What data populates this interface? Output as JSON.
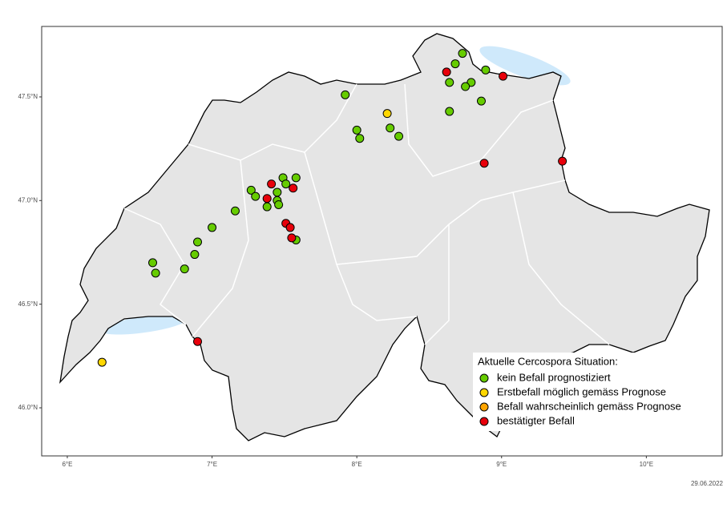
{
  "chart_data": {
    "type": "map",
    "legend_title": "Aktuelle Cercospora Situation:",
    "caption": "29.06.2022",
    "xlim": [
      5.823,
      10.524
    ],
    "ylim": [
      45.768,
      47.84
    ],
    "xticks": [
      {
        "value": 6,
        "label": "6°E"
      },
      {
        "value": 7,
        "label": "7°E"
      },
      {
        "value": 8,
        "label": "8°E"
      },
      {
        "value": 9,
        "label": "9°E"
      },
      {
        "value": 10,
        "label": "10°E"
      }
    ],
    "yticks": [
      {
        "value": 46.0,
        "label": "46.0°N"
      },
      {
        "value": 46.5,
        "label": "46.5°N"
      },
      {
        "value": 47.0,
        "label": "47.0°N"
      },
      {
        "value": 47.5,
        "label": "47.5°N"
      }
    ],
    "series": [
      {
        "name": "kein Befall prognostiziert",
        "color": "#66cc00",
        "x": [
          8.73,
          8.68,
          8.64,
          8.79,
          8.75,
          8.89,
          8.64,
          8.86,
          7.92,
          8.0,
          8.02,
          8.23,
          8.29,
          7.49,
          7.58,
          7.51,
          7.45,
          7.27,
          7.3,
          7.45,
          7.46,
          7.38,
          7.16,
          7.0,
          6.59,
          6.61,
          6.9,
          6.88,
          6.81,
          7.58
        ],
        "values": [
          47.71,
          47.66,
          47.57,
          47.57,
          47.55,
          47.63,
          47.43,
          47.48,
          47.51,
          47.34,
          47.3,
          47.35,
          47.31,
          47.11,
          47.11,
          47.08,
          47.04,
          47.05,
          47.02,
          47.0,
          46.98,
          46.97,
          46.95,
          46.87,
          46.7,
          46.65,
          46.8,
          46.74,
          46.67,
          46.81
        ]
      },
      {
        "name": "Erstbefall möglich gemäss Prognose",
        "color": "#ffd700",
        "x": [
          8.21,
          6.24
        ],
        "values": [
          47.42,
          46.22
        ]
      },
      {
        "name": "Befall wahrscheinlich gemäss Prognose",
        "color": "#ffa500",
        "x": [],
        "values": []
      },
      {
        "name": "bestätigter Befall",
        "color": "#e8000b",
        "x": [
          8.62,
          9.01,
          8.88,
          9.42,
          7.41,
          7.56,
          7.38,
          7.51,
          7.54,
          7.55,
          6.9
        ],
        "values": [
          47.62,
          47.6,
          47.18,
          47.19,
          47.08,
          47.06,
          47.01,
          46.89,
          46.87,
          46.82,
          46.32
        ]
      }
    ]
  }
}
